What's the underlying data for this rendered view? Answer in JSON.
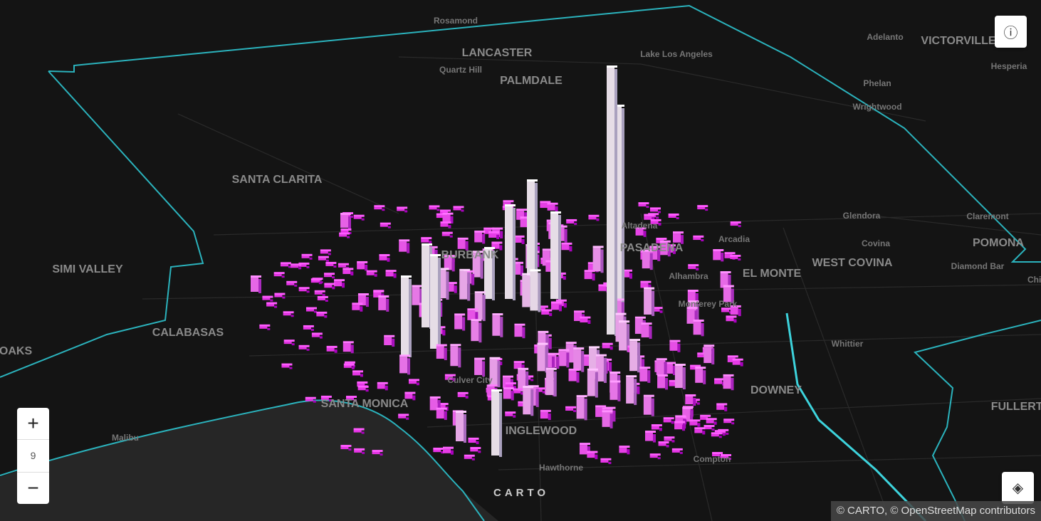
{
  "map": {
    "place_labels": [
      "Rosamond",
      "LANCASTER",
      "Quartz Hill",
      "PALMDALE",
      "Lake Los Angeles",
      "Adelanto",
      "VICTORVILLE",
      "Hesperia",
      "Phelan",
      "Wrightwood",
      "SANTA CLARITA",
      "Glendora",
      "Claremont",
      "Arcadia",
      "Covina",
      "POMONA",
      "PASADENA",
      "Altadena",
      "BURBANK",
      "SIMI VALLEY",
      "EL MONTE",
      "WEST COVINA",
      "Diamond Bar",
      "Alhambra",
      "Monterey Park",
      "CALABASAS",
      "OAKS",
      "Chino",
      "Whittier",
      "Culver City",
      "DOWNEY",
      "SANTA MONICA",
      "FULLERTON",
      "INGLEWOOD",
      "Malibu",
      "Hawthorne",
      "Compton"
    ],
    "zoom_level": "9",
    "logo": "CARTO",
    "attribution": "© CARTO, © OpenStreetMap contributors"
  }
}
